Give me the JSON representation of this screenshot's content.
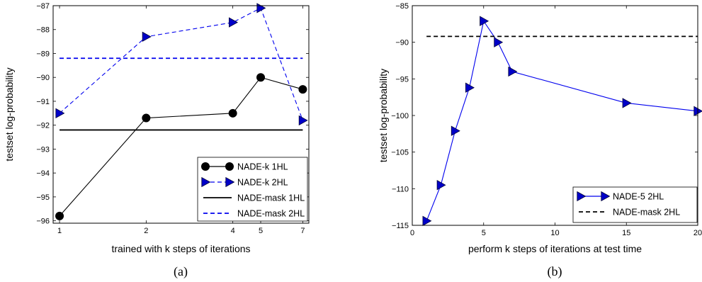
{
  "chart_data": [
    {
      "type": "line",
      "panel_label": "(a)",
      "xlabel": "trained with k steps of iterations",
      "ylabel": "testset log-probability",
      "xscale": "log",
      "xlim": [
        0.95,
        7.35
      ],
      "ylim": [
        -96.1,
        -87.0
      ],
      "xticks": [
        1,
        2,
        4,
        5,
        7
      ],
      "yticks": [
        -96,
        -95,
        -94,
        -93,
        -92,
        -91,
        -90,
        -89,
        -88,
        -87
      ],
      "grid": false,
      "legend_position": "lower-right",
      "series": [
        {
          "name": "NADE-k 1HL",
          "x": [
            1,
            2,
            4,
            5,
            7
          ],
          "y": [
            -95.8,
            -91.7,
            -91.5,
            -90.0,
            -90.5
          ],
          "color": "#000000",
          "style": "solid",
          "marker": "circle"
        },
        {
          "name": "NADE-k 2HL",
          "x": [
            1,
            2,
            4,
            5,
            7
          ],
          "y": [
            -91.5,
            -88.3,
            -87.7,
            -87.1,
            -91.8
          ],
          "color": "#0000ee",
          "style": "dashed",
          "marker": "triangle-right"
        },
        {
          "name": "NADE-mask 1HL",
          "x": [
            1,
            7
          ],
          "y": [
            -92.2,
            -92.2
          ],
          "color": "#000000",
          "style": "solid",
          "marker": "none"
        },
        {
          "name": "NADE-mask 2HL",
          "x": [
            1,
            7
          ],
          "y": [
            -89.2,
            -89.2
          ],
          "color": "#0000ee",
          "style": "dashed",
          "marker": "none"
        }
      ]
    },
    {
      "type": "line",
      "panel_label": "(b)",
      "xlabel": "perform k steps of iterations at test time",
      "ylabel": "testset log-probability",
      "xscale": "linear",
      "xlim": [
        0,
        20
      ],
      "ylim": [
        -115,
        -85
      ],
      "xticks": [
        0,
        5,
        10,
        15,
        20
      ],
      "yticks": [
        -115,
        -110,
        -105,
        -100,
        -95,
        -90,
        -85
      ],
      "grid": false,
      "legend_position": "lower-right",
      "series": [
        {
          "name": "NADE-5 2HL",
          "x": [
            1,
            2,
            3,
            4,
            5,
            6,
            7,
            15,
            20
          ],
          "y": [
            -114.4,
            -109.5,
            -102.1,
            -96.2,
            -87.1,
            -90.0,
            -94.0,
            -98.3,
            -99.4
          ],
          "color": "#0000ee",
          "style": "solid",
          "marker": "triangle-right"
        },
        {
          "name": "NADE-mask 2HL",
          "x": [
            1,
            20
          ],
          "y": [
            -89.2,
            -89.2
          ],
          "color": "#000000",
          "style": "dashed",
          "marker": "none"
        }
      ]
    }
  ]
}
